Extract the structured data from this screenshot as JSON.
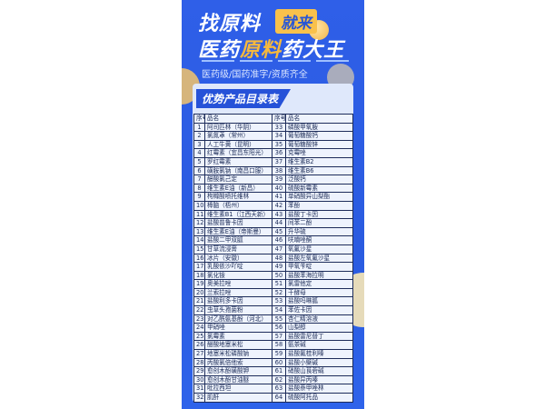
{
  "poster": {
    "title_line1": "找原料",
    "badge": "就来",
    "title_line2_pre": "医药",
    "title_line2_hl": "原料",
    "title_line2_post": "药大王",
    "subtitle": "医药级/国药准字/资质齐全",
    "section_title": "优势产品目录表",
    "colors": {
      "background": "#2f5fe8",
      "accent": "#f8c14b",
      "panel": "#dfe8fb"
    }
  },
  "table": {
    "headers": [
      "序号",
      "品名",
      "序号",
      "品名"
    ],
    "rows": [
      [
        "1",
        "阿司匹林（华阴）",
        "33",
        "磷酸甲氧胺"
      ],
      [
        "2",
        "氯氮䓬（常州）",
        "34",
        "葡萄糖酸钙"
      ],
      [
        "3",
        "人工牛黄（昆明）",
        "35",
        "葡萄糖酸锌"
      ],
      [
        "4",
        "红霉素（宜昌东阳光）",
        "36",
        "克霉唑"
      ],
      [
        "5",
        "罗红霉素",
        "37",
        "维生素B2"
      ],
      [
        "6",
        "磺胺氯钠（南昌口服）",
        "38",
        "维生素B6"
      ],
      [
        "7",
        "醋酸氯己定",
        "39",
        "泛酸钙"
      ],
      [
        "8",
        "维生素E油（新昌）",
        "40",
        "硫酸新霉素"
      ],
      [
        "9",
        "枸橼酸喷托维林",
        "41",
        "单硝酸异山梨酯"
      ],
      [
        "10",
        "樟脑（梧州）",
        "42",
        "苯酚"
      ],
      [
        "11",
        "维生素B1（江西天新）",
        "43",
        "盐酸丁卡因"
      ],
      [
        "12",
        "盐酸普鲁卡因",
        "44",
        "间苯二酚"
      ],
      [
        "13",
        "维生素E油（帝斯曼）",
        "45",
        "升华硫"
      ],
      [
        "14",
        "盐酸二甲双胍",
        "46",
        "呋喃唑酮"
      ],
      [
        "15",
        "甘草流浸膏",
        "47",
        "氧氟沙星"
      ],
      [
        "16",
        "冰片（安徽）",
        "48",
        "盐酸左氧氟沙星"
      ],
      [
        "17",
        "乳酸依沙吖啶",
        "49",
        "甲氧苄啶"
      ],
      [
        "18",
        "氯化铵",
        "50",
        "盐酸苯海拉明"
      ],
      [
        "19",
        "奥美拉唑",
        "51",
        "氯雷他定"
      ],
      [
        "20",
        "兰索拉唑",
        "52",
        "干酵母"
      ],
      [
        "21",
        "盐酸利多卡因",
        "53",
        "盐酸吗啉胍"
      ],
      [
        "22",
        "虫草头孢菌粉",
        "54",
        "苯佐卡因"
      ],
      [
        "23",
        "对乙酰氨基酚（河北）",
        "55",
        "杏仁精溶液"
      ],
      [
        "24",
        "甲硝唑",
        "56",
        "山梨醇"
      ],
      [
        "25",
        "氯霉素",
        "57",
        "盐酸雷尼替丁"
      ],
      [
        "26",
        "醋酸地塞米松",
        "58",
        "氨茶碱"
      ],
      [
        "27",
        "地塞米松磷酸钠",
        "59",
        "盐酸氟桂利嗪"
      ],
      [
        "28",
        "丙酸氯倍他索",
        "60",
        "盐酸小檗碱"
      ],
      [
        "29",
        "愈创木酚磺酸钾",
        "61",
        "硝酸山莨菪碱"
      ],
      [
        "30",
        "愈创木酚甘油醚",
        "62",
        "盐酸异丙嗪"
      ],
      [
        "31",
        "吡拉西坦",
        "63",
        "盐酸萘甲唑林"
      ],
      [
        "32",
        "肌酐",
        "64",
        "硫酸阿托品"
      ]
    ]
  }
}
